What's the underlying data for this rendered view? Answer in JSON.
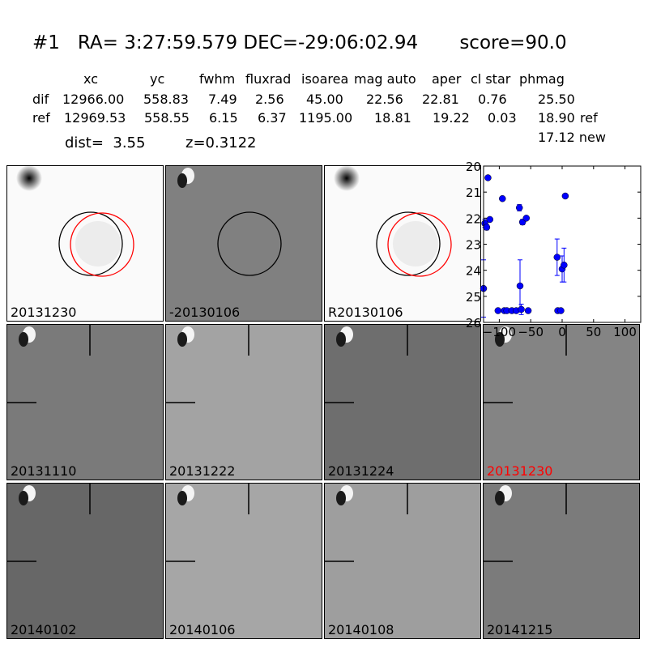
{
  "header": {
    "title": "#1   RA= 3:27:59.579 DEC=-29:06:02.94       score=90.0",
    "columns": [
      "xc",
      "yc",
      "fwhm",
      "fluxrad",
      "isoarea",
      "mag auto",
      "aper",
      "cl star",
      "phmag"
    ],
    "rows": [
      {
        "label": "dif",
        "values": [
          "12966.00",
          "558.83",
          "7.49",
          "2.56",
          "45.00",
          "22.56",
          "22.81",
          "0.76",
          "25.50"
        ],
        "suffix": ""
      },
      {
        "label": "ref",
        "values": [
          "12969.53",
          "558.55",
          "6.15",
          "6.37",
          "1195.00",
          "18.81",
          "19.22",
          "0.03",
          "18.90"
        ],
        "suffix": "ref"
      }
    ],
    "new_mag": "17.12 new",
    "dist": "dist=  3.55",
    "z": "z=0.3122"
  },
  "panels": [
    {
      "label": "20131230",
      "bg": "#fafafa",
      "circles": "both"
    },
    {
      "label": "-20130106",
      "bg": "#808080",
      "circles": "black"
    },
    {
      "label": "R20130106",
      "bg": "#fafafa",
      "circles": "both"
    },
    {
      "label": "20131110",
      "bg": "#7a7a7a",
      "cross": true
    },
    {
      "label": "20131222",
      "bg": "#a3a3a3",
      "cross": true
    },
    {
      "label": "20131224",
      "bg": "#6e6e6e",
      "cross": true
    },
    {
      "label": "20131230",
      "bg": "#848484",
      "cross": true,
      "label_color": "#ff0000"
    },
    {
      "label": "20140102",
      "bg": "#676767",
      "cross": true
    },
    {
      "label": "20140106",
      "bg": "#a6a6a6",
      "cross": true
    },
    {
      "label": "20140108",
      "bg": "#9e9e9e",
      "cross": true
    },
    {
      "label": "20141215",
      "bg": "#7b7b7b",
      "cross": true
    }
  ],
  "chart_data": {
    "type": "scatter",
    "title": "",
    "xlabel": "",
    "ylabel": "",
    "xlim": [
      -125,
      125
    ],
    "ylim": [
      26,
      20
    ],
    "y_inverted": true,
    "xticks": [
      -100,
      -50,
      0,
      50,
      100
    ],
    "yticks": [
      20,
      21,
      22,
      23,
      24,
      25,
      26
    ],
    "xtick_labels": [
      "−100",
      "−50",
      "0",
      "50",
      "100"
    ],
    "ytick_labels": [
      "20",
      "21",
      "22",
      "23",
      "24",
      "25",
      "26"
    ],
    "grid": false,
    "series": [
      {
        "color": "#0000ff",
        "points": [
          {
            "x": -125,
            "y": 24.7,
            "err": 1.1
          },
          {
            "x": -123,
            "y": 22.2,
            "err": 0.15
          },
          {
            "x": -120,
            "y": 22.35,
            "err": 0.1
          },
          {
            "x": -118,
            "y": 20.45,
            "err": 0
          },
          {
            "x": -115,
            "y": 22.05,
            "err": 0
          },
          {
            "x": -102,
            "y": 25.55,
            "err": 0
          },
          {
            "x": -95,
            "y": 21.25,
            "err": 0
          },
          {
            "x": -92,
            "y": 25.55,
            "err": 0
          },
          {
            "x": -88,
            "y": 25.55,
            "err": 0
          },
          {
            "x": -80,
            "y": 25.55,
            "err": 0
          },
          {
            "x": -73,
            "y": 25.55,
            "err": 0
          },
          {
            "x": -68,
            "y": 21.6,
            "err": 0.12
          },
          {
            "x": -67,
            "y": 24.6,
            "err": 1.0
          },
          {
            "x": -65,
            "y": 25.5,
            "err": 0.2
          },
          {
            "x": -63,
            "y": 22.15,
            "err": 0.1
          },
          {
            "x": -57,
            "y": 22.0,
            "err": 0
          },
          {
            "x": -54,
            "y": 25.55,
            "err": 0
          },
          {
            "x": -8,
            "y": 23.5,
            "err": 0.7
          },
          {
            "x": -7,
            "y": 25.55,
            "err": 0
          },
          {
            "x": -2,
            "y": 25.55,
            "err": 0
          },
          {
            "x": 0,
            "y": 23.95,
            "err": 0.5
          },
          {
            "x": 3,
            "y": 23.8,
            "err": 0.65
          },
          {
            "x": 5,
            "y": 21.15,
            "err": 0
          }
        ]
      }
    ]
  }
}
